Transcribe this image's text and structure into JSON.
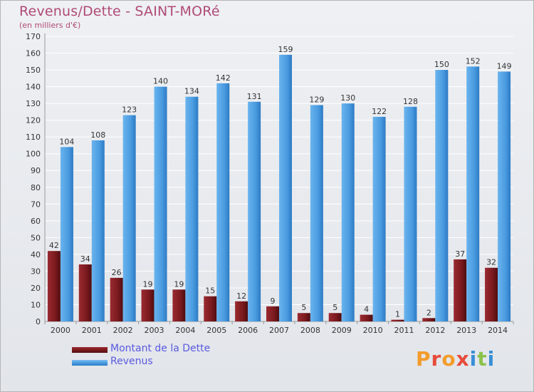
{
  "colors": {
    "title": "#b04a78",
    "legend_text": "#5a5adf",
    "dette_fill": "#7a1a1e",
    "revenus_fill": "#4a9be0"
  },
  "logo": {
    "text": "Proxiti",
    "letter_colors": [
      "#f39c2b",
      "#e74c3c",
      "#f39c2b",
      "#e74c3c",
      "#3a8fd6",
      "#8bc34a",
      "#3a8fd6"
    ]
  },
  "chart_data": {
    "type": "bar",
    "title": "Revenus/Dette - SAINT-MORé",
    "subtitle": "(en milliers d'€)",
    "xlabel": "",
    "ylabel": "",
    "ylim": [
      0,
      170
    ],
    "ytick_step": 10,
    "grid": true,
    "legend_position": "bottom-left",
    "categories": [
      "2000",
      "2001",
      "2002",
      "2003",
      "2004",
      "2005",
      "2006",
      "2007",
      "2008",
      "2009",
      "2010",
      "2011",
      "2012",
      "2013",
      "2014"
    ],
    "series": [
      {
        "name": "Montant de la Dette",
        "values": [
          42,
          34,
          26,
          19,
          19,
          15,
          12,
          9,
          5,
          5,
          4,
          1,
          2,
          37,
          32
        ]
      },
      {
        "name": "Revenus",
        "values": [
          104,
          108,
          123,
          140,
          134,
          142,
          131,
          159,
          129,
          130,
          122,
          128,
          150,
          152,
          149
        ]
      }
    ]
  }
}
